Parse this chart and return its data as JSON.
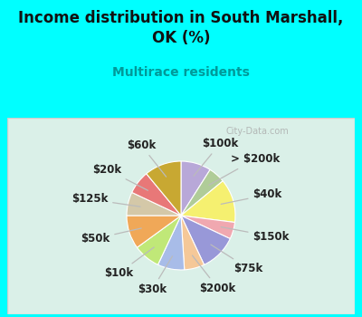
{
  "title": "Income distribution in South Marshall,\nOK (%)",
  "subtitle": "Multirace residents",
  "background_color": "#00FFFF",
  "chart_bg_color": "#daf0e8",
  "watermark": "City-Data.com",
  "labels": [
    "$100k",
    "> $200k",
    "$40k",
    "$150k",
    "$75k",
    "$200k",
    "$30k",
    "$10k",
    "$50k",
    "$125k",
    "$20k",
    "$60k"
  ],
  "values": [
    9,
    5,
    13,
    5,
    11,
    6,
    8,
    8,
    10,
    7,
    7,
    11
  ],
  "colors": [
    "#b8a8d8",
    "#b0cc98",
    "#f5f070",
    "#f0a8b0",
    "#9898d8",
    "#f5c898",
    "#a8bce8",
    "#c0e878",
    "#f0a858",
    "#d4c8a8",
    "#e87878",
    "#c8a832"
  ],
  "label_fontsize": 8.5,
  "title_fontsize": 12,
  "subtitle_fontsize": 10,
  "title_color": "#111111",
  "subtitle_color": "#009999"
}
